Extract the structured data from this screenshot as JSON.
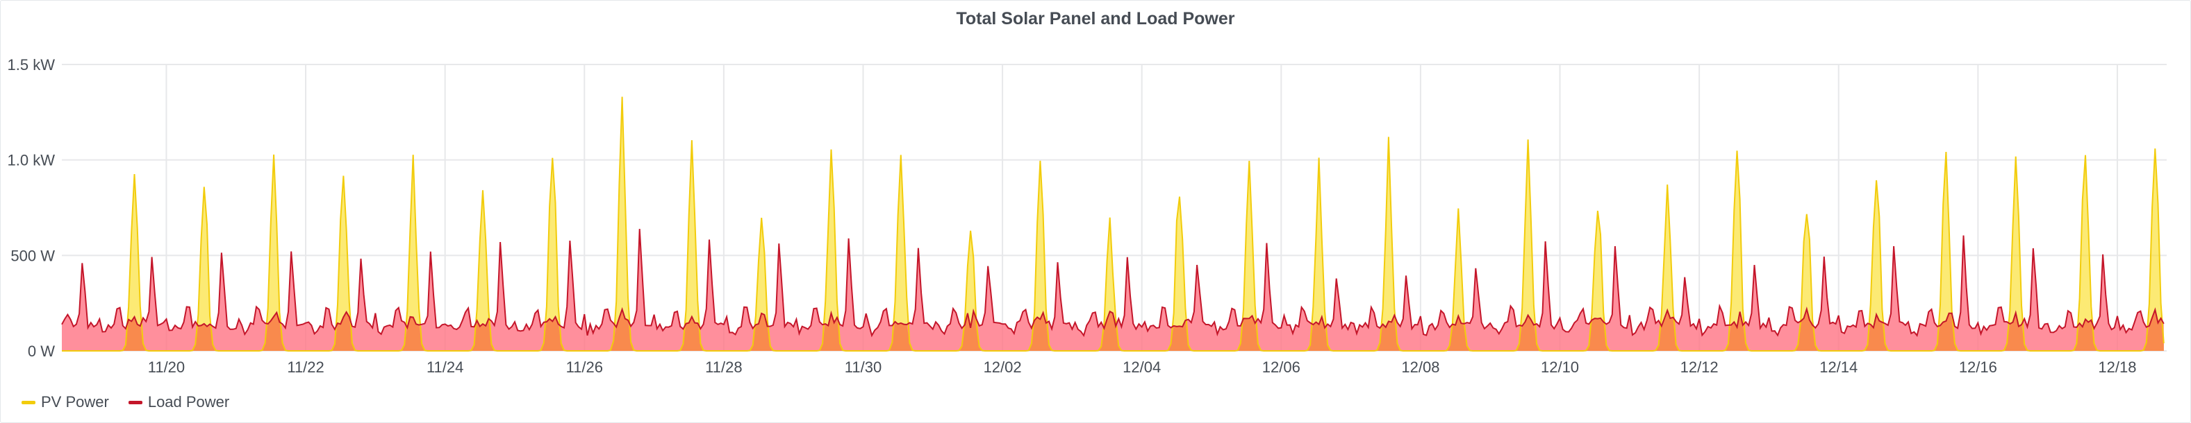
{
  "chart_data": {
    "type": "area",
    "title": "Total Solar Panel and Load Power",
    "xlabel": "",
    "ylabel": "",
    "x_range": [
      "11/18 12:00",
      "12/18 17:00"
    ],
    "ylim": [
      0,
      1500
    ],
    "yticks": [
      {
        "value": 0,
        "label": "0 W"
      },
      {
        "value": 500,
        "label": "500 W"
      },
      {
        "value": 1000,
        "label": "1.0 kW"
      },
      {
        "value": 1500,
        "label": "1.5 kW"
      }
    ],
    "xtick_labels": [
      "11/20",
      "11/22",
      "11/24",
      "11/26",
      "11/28",
      "11/30",
      "12/02",
      "12/04",
      "12/06",
      "12/08",
      "12/10",
      "12/12",
      "12/14",
      "12/16",
      "12/18"
    ],
    "days": [
      "11/18",
      "11/19",
      "11/20",
      "11/21",
      "11/22",
      "11/23",
      "11/24",
      "11/25",
      "11/26",
      "11/27",
      "11/28",
      "11/29",
      "11/30",
      "12/01",
      "12/02",
      "12/03",
      "12/04",
      "12/05",
      "12/06",
      "12/07",
      "12/08",
      "12/09",
      "12/10",
      "12/11",
      "12/12",
      "12/13",
      "12/14",
      "12/15",
      "12/16",
      "12/17",
      "12/18"
    ],
    "grid": true,
    "legend_position": "bottom-left",
    "series": [
      {
        "name": "PV Power",
        "color": "#f2cc0c",
        "fill": "#fade2a",
        "daily_peak_w": [
          0,
          940,
          890,
          970,
          980,
          955,
          920,
          1040,
          1250,
          1020,
          730,
          1020,
          1090,
          640,
          920,
          650,
          880,
          930,
          920,
          1020,
          680,
          990,
          810,
          850,
          1060,
          780,
          940,
          990,
          1020,
          1050,
          1140
        ]
      },
      {
        "name": "Load Power",
        "color": "#c4162a",
        "fill": "#ff7383",
        "daily_evening_peak_w": [
          480,
          520,
          530,
          550,
          500,
          530,
          570,
          600,
          640,
          580,
          580,
          590,
          540,
          470,
          460,
          490,
          450,
          590,
          390,
          390,
          440,
          570,
          560,
          410,
          440,
          500,
          570,
          610,
          560,
          510,
          300
        ]
      }
    ]
  },
  "legend": {
    "items": [
      {
        "label": "PV Power",
        "color": "#f2cc0c"
      },
      {
        "label": "Load Power",
        "color": "#c4162a"
      }
    ]
  }
}
